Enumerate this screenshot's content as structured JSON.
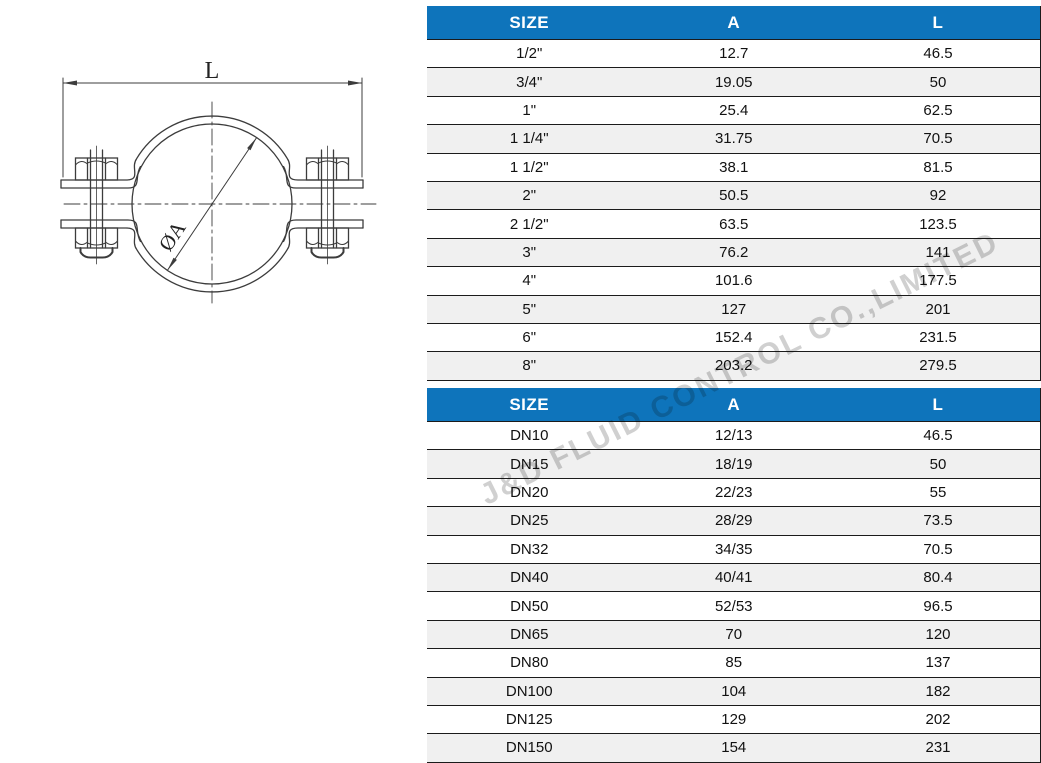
{
  "diagram": {
    "dim_length_label": "L",
    "dim_diameter_label": "ØA"
  },
  "watermark": {
    "text": "J&D FLUID CONTROL CO.,LIMITED"
  },
  "tables": [
    {
      "id": "inch-sizes",
      "headers": [
        "SIZE",
        "A",
        "L"
      ],
      "rows": [
        [
          "1/2\"",
          "12.7",
          "46.5"
        ],
        [
          "3/4\"",
          "19.05",
          "50"
        ],
        [
          "1\"",
          "25.4",
          "62.5"
        ],
        [
          "1 1/4\"",
          "31.75",
          "70.5"
        ],
        [
          "1 1/2\"",
          "38.1",
          "81.5"
        ],
        [
          "2\"",
          "50.5",
          "92"
        ],
        [
          "2 1/2\"",
          "63.5",
          "123.5"
        ],
        [
          "3\"",
          "76.2",
          "141"
        ],
        [
          "4\"",
          "101.6",
          "177.5"
        ],
        [
          "5\"",
          "127",
          "201"
        ],
        [
          "6\"",
          "152.4",
          "231.5"
        ],
        [
          "8\"",
          "203.2",
          "279.5"
        ]
      ]
    },
    {
      "id": "dn-sizes",
      "headers": [
        "SIZE",
        "A",
        "L"
      ],
      "rows": [
        [
          "DN10",
          "12/13",
          "46.5"
        ],
        [
          "DN15",
          "18/19",
          "50"
        ],
        [
          "DN20",
          "22/23",
          "55"
        ],
        [
          "DN25",
          "28/29",
          "73.5"
        ],
        [
          "DN32",
          "34/35",
          "70.5"
        ],
        [
          "DN40",
          "40/41",
          "80.4"
        ],
        [
          "DN50",
          "52/53",
          "96.5"
        ],
        [
          "DN65",
          "70",
          "120"
        ],
        [
          "DN80",
          "85",
          "137"
        ],
        [
          "DN100",
          "104",
          "182"
        ],
        [
          "DN125",
          "129",
          "202"
        ],
        [
          "DN150",
          "154",
          "231"
        ]
      ]
    }
  ],
  "colors": {
    "header_bg": "#0e74bb",
    "header_text": "#ffffff",
    "row_alt_bg": "#f0f0f0",
    "border": "#1b1b1b",
    "line": "#3c3c3c",
    "watermark": "#d0d0d0"
  }
}
